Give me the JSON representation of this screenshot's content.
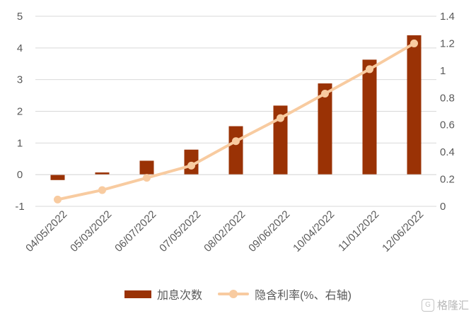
{
  "chart_data": {
    "type": "bar+line",
    "categories": [
      "04/05/2022",
      "05/03/2022",
      "06/07/2022",
      "07/05/2022",
      "08/02/2022",
      "09/06/2022",
      "10/04/2022",
      "11/01/2022",
      "12/06/2022"
    ],
    "series": [
      {
        "name": "加息次数",
        "type": "bar",
        "axis": "left",
        "color": "#9A3205",
        "values": [
          -0.17,
          0.07,
          0.44,
          0.79,
          1.53,
          2.18,
          2.88,
          3.63,
          4.4
        ]
      },
      {
        "name": "隐含利率(%、右轴)",
        "type": "line",
        "axis": "right",
        "color": "#F8CBA0",
        "values": [
          0.05,
          0.12,
          0.21,
          0.3,
          0.48,
          0.65,
          0.83,
          1.01,
          1.2
        ]
      }
    ],
    "yleft": {
      "min": -1,
      "max": 5,
      "ticks": [
        -1,
        0,
        1,
        2,
        3,
        4,
        5
      ]
    },
    "yright": {
      "min": 0,
      "max": 1.4,
      "ticks": [
        "0",
        "0.2",
        "0.4",
        "0.6",
        "0.8",
        "1",
        "1.2",
        "1.4"
      ]
    },
    "grid": true,
    "legend_position": "bottom"
  },
  "watermark": {
    "text": "格隆汇",
    "logo_glyph": "G"
  }
}
